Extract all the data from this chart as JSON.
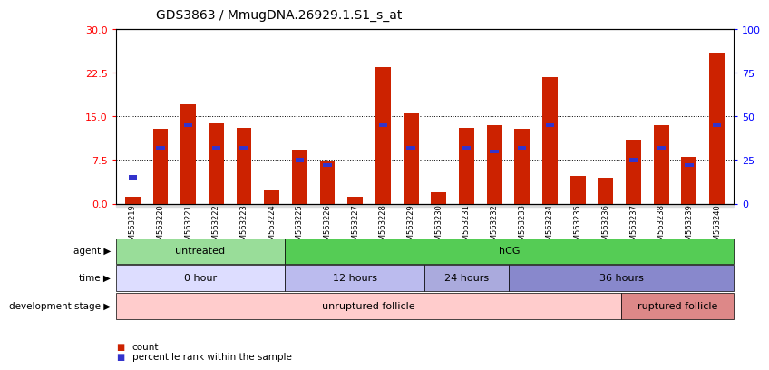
{
  "title": "GDS3863 / MmugDNA.26929.1.S1_s_at",
  "samples": [
    "GSM563219",
    "GSM563220",
    "GSM563221",
    "GSM563222",
    "GSM563223",
    "GSM563224",
    "GSM563225",
    "GSM563226",
    "GSM563227",
    "GSM563228",
    "GSM563229",
    "GSM563230",
    "GSM563231",
    "GSM563232",
    "GSM563233",
    "GSM563234",
    "GSM563235",
    "GSM563236",
    "GSM563237",
    "GSM563238",
    "GSM563239",
    "GSM563240"
  ],
  "counts": [
    1.2,
    12.8,
    17.0,
    13.8,
    13.0,
    2.3,
    9.2,
    7.2,
    1.2,
    23.5,
    15.5,
    2.0,
    13.0,
    13.5,
    12.8,
    21.8,
    4.8,
    4.5,
    11.0,
    13.5,
    8.0,
    26.0
  ],
  "percentiles_pct": [
    15.0,
    32.0,
    45.0,
    32.0,
    32.0,
    0.0,
    25.0,
    22.0,
    0.0,
    45.0,
    32.0,
    0.0,
    32.0,
    30.0,
    32.0,
    45.0,
    0.0,
    0.0,
    25.0,
    32.0,
    22.0,
    45.0
  ],
  "count_color": "#cc2200",
  "percentile_color": "#3333cc",
  "ylim_left": [
    0,
    30
  ],
  "ylim_right": [
    0,
    100
  ],
  "yticks_left": [
    0,
    7.5,
    15,
    22.5,
    30
  ],
  "yticks_right": [
    0,
    25,
    50,
    75,
    100
  ],
  "agent_groups": [
    {
      "label": "untreated",
      "start": 0,
      "end": 6,
      "color": "#99dd99"
    },
    {
      "label": "hCG",
      "start": 6,
      "end": 22,
      "color": "#55cc55"
    }
  ],
  "time_groups": [
    {
      "label": "0 hour",
      "start": 0,
      "end": 6,
      "color": "#ddddff"
    },
    {
      "label": "12 hours",
      "start": 6,
      "end": 11,
      "color": "#bbbbee"
    },
    {
      "label": "24 hours",
      "start": 11,
      "end": 14,
      "color": "#aaaadd"
    },
    {
      "label": "36 hours",
      "start": 14,
      "end": 22,
      "color": "#8888cc"
    }
  ],
  "dev_groups": [
    {
      "label": "unruptured follicle",
      "start": 0,
      "end": 18,
      "color": "#ffcccc"
    },
    {
      "label": "ruptured follicle",
      "start": 18,
      "end": 22,
      "color": "#dd8888"
    }
  ],
  "row_labels": [
    "agent",
    "time",
    "development stage"
  ],
  "bar_width": 0.55,
  "background_color": "#ffffff",
  "title_fontsize": 10,
  "tick_label_bg": "#dddddd"
}
